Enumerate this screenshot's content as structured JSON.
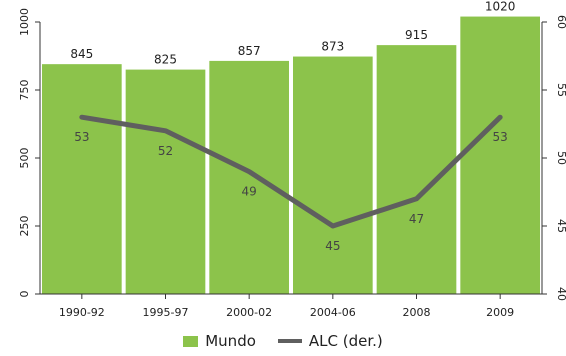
{
  "chart_data": {
    "type": "bar",
    "categories": [
      "1990-92",
      "1995-97",
      "2000-02",
      "2004-06",
      "2008",
      "2009"
    ],
    "series": [
      {
        "name": "Mundo",
        "type": "bar",
        "axis": "left",
        "color": "#8cc34b",
        "values": [
          845,
          825,
          857,
          873,
          915,
          1020
        ],
        "data_labels": [
          "845",
          "825",
          "857",
          "873",
          "915",
          "1020"
        ]
      },
      {
        "name": "ALC (der.)",
        "type": "line",
        "axis": "right",
        "color": "#5f5f5f",
        "values": [
          53,
          52,
          49,
          45,
          47,
          53
        ],
        "data_labels": [
          "53",
          "52",
          "49",
          "45",
          "47",
          "53"
        ]
      }
    ],
    "left_axis": {
      "ylim": [
        0,
        1000
      ],
      "ticks": [
        "0",
        "250",
        "500",
        "750",
        "1000"
      ]
    },
    "right_axis": {
      "ylim": [
        40,
        60
      ],
      "ticks": [
        "40",
        "45",
        "50",
        "55",
        "60"
      ]
    },
    "grid": false,
    "legend_position": "bottom"
  }
}
